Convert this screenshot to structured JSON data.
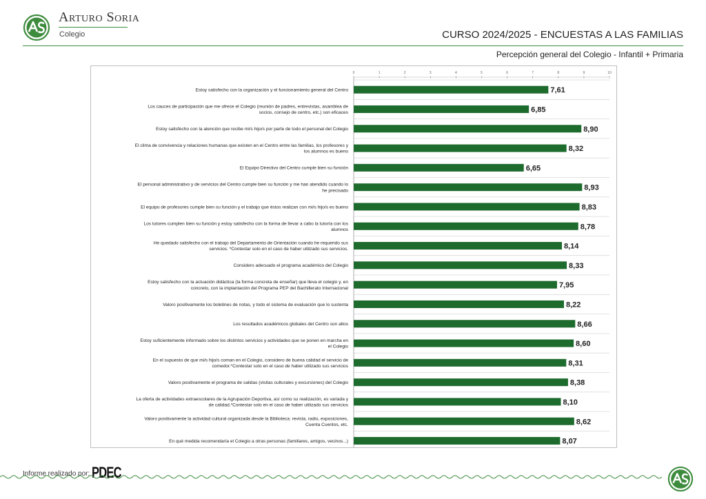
{
  "brand": {
    "name": "Arturo Soria",
    "sub": "Colegio",
    "logo_icon": "as-monogram-icon"
  },
  "header": {
    "title": "CURSO 2024/2025 - ENCUESTAS A LAS FAMILIAS",
    "subtitle": "Percepción general del Colegio - Infantil + Primaria"
  },
  "footer": {
    "prefix": "Informe realizado por:",
    "company": "PDEC"
  },
  "colors": {
    "bar": "#1e6b2e",
    "accent": "#3d8b3d",
    "grid": "#d9d9d9"
  },
  "chart_data": {
    "type": "bar",
    "orientation": "horizontal",
    "xlim": [
      0,
      10
    ],
    "xticks": [
      "0",
      "1",
      "2",
      "3",
      "4",
      "5",
      "6",
      "7",
      "8",
      "9",
      "10"
    ],
    "grid": true,
    "categories": [
      "Estoy satisfecho con la organización y el funcionamiento general del Centro",
      "Los cauces de participación que me ofrece el Colegio (reunión de padres, entrevistas, asamblea de socios, consejo de centro, etc.) son eficaces",
      "Estoy satisfecho con la atención que recibe mi/s hijo/s por parte de todo el personal del Colegio",
      "El clima de convivencia y relaciones humanas que existen en el Centro entre las familias, los profesores y los alumnos es bueno",
      "El Equipo Directivo del Centro cumple bien su función",
      "El personal administrativo y de servicios del Centro cumple bien su función y me han atendido cuando lo he precisado",
      "El equipo de profesores cumple bien su función y el trabajo que éstos realizan con mi/s hijo/s es bueno",
      "Los tutores cumplen bien su función y estoy satisfecho con la forma de llevar a cabo la tutoría con los alumnos",
      "He quedado satisfecho con el trabajo del Departamento de Orientación cuando he requerido sus servicios. *Contestar solo en el caso de haber utilizado sus servicios.",
      "Considero adecuado el programa académico del Colegio",
      "Estoy satisfecho con la actuación didáctica (la forma concreta de enseñar) que lleva el colegio y, en concreto, con la implantación del Programa PEP del Bachillerato Internacional",
      "Valoro positivamente los boletines de notas, y todo el sistema de evaluación que lo sustenta",
      "Los resultados académicos globales del Centro son altos",
      "Estoy suficientemente informado sobre los distintos servicios y actividades que se ponen en marcha en el Colegio",
      "En el supuesto de que mi/s hijo/s coman en el Colegio, considero de buena calidad el servicio de comedor.*Contestar solo en el caso de haber utilizado sus servicios",
      "Valoro positivamente el programa de salidas (visitas culturales y excursiones) del Colegio",
      "La oferta de actividades extraescolares de la Agrupación Deportiva, así como su realización, es variada y de calidad.*Contestar solo en el caso de haber utilizado sus servicios",
      "Valoro positivamente la actividad cultural organizada desde la Biblioteca: revista, radio, exposiciones, Cuenta Cuentos, etc.",
      "En qué medida recomendaría el Colegio a otras personas (familiares, amigos, vecinos...)"
    ],
    "label_lines": [
      [
        "Estoy satisfecho con la organización y el funcionamiento general del Centro"
      ],
      [
        "Los cauces de participación que me ofrece el Colegio (reunión de padres, entrevistas, asamblea de",
        "socios, consejo de centro, etc.) son eficaces"
      ],
      [
        "Estoy satisfecho con la atención que recibe mi/s hijo/s por parte de todo el personal del Colegio"
      ],
      [
        "El clima de convivencia y relaciones humanas que existen en el Centro entre las familias, los profesores y",
        "los alumnos es bueno"
      ],
      [
        "El Equipo Directivo del Centro cumple bien su función"
      ],
      [
        "El personal administrativo y de servicios del Centro cumple bien su función y me han atendido cuando lo",
        "he precisado"
      ],
      [
        "El equipo de profesores cumple bien su función y el trabajo que éstos realizan con mi/s hijo/s es bueno"
      ],
      [
        "Los tutores cumplen bien su función y estoy satisfecho con la forma de llevar a cabo la tutoría con los",
        "alumnos"
      ],
      [
        "He quedado satisfecho con el trabajo del Departamento de Orientación cuando he requerido sus",
        "servicios. *Contestar solo en el caso de haber utilizado sus servicios."
      ],
      [
        "Considero adecuado el programa académico del Colegio"
      ],
      [
        "Estoy satisfecho con la actuación didáctica (la forma concreta de enseñar) que lleva el colegio y, en",
        "concreto, con la implantación del Programa PEP del Bachillerato Internacional"
      ],
      [
        "Valoro positivamente los boletines de notas, y todo el sistema de evaluación que lo sustenta"
      ],
      [
        "Los resultados académicos globales del Centro son altos"
      ],
      [
        "Estoy suficientemente informado sobre los distintos servicios y actividades que se ponen en marcha en",
        "el Colegio"
      ],
      [
        "En el supuesto de que mi/s hijo/s coman en el Colegio, considero de buena calidad el servicio de",
        "comedor.*Contestar solo en el caso de haber utilizado sus servicios"
      ],
      [
        "Valoro positivamente el programa de salidas (visitas culturales y excursiones) del Colegio"
      ],
      [
        "La oferta de actividades extraescolares de la Agrupación Deportiva, así como su realización, es variada y",
        "de calidad.*Contestar solo en el caso de haber utilizado sus servicios"
      ],
      [
        "Valoro positivamente la actividad cultural organizada desde la Biblioteca: revista, radio, exposiciones,",
        "Cuenta Cuentos, etc."
      ],
      [
        "En qué medida recomendaría el Colegio a otras personas (familiares, amigos, vecinos...)"
      ]
    ],
    "values": [
      7.61,
      6.85,
      8.9,
      8.32,
      6.65,
      8.93,
      8.83,
      8.78,
      8.14,
      8.33,
      7.95,
      8.22,
      8.66,
      8.6,
      8.31,
      8.38,
      8.1,
      8.62,
      8.07
    ],
    "value_labels": [
      "7,61",
      "6,85",
      "8,90",
      "8,32",
      "6,65",
      "8,93",
      "8,83",
      "8,78",
      "8,14",
      "8,33",
      "7,95",
      "8,22",
      "8,66",
      "8,60",
      "8,31",
      "8,38",
      "8,10",
      "8,62",
      "8,07"
    ]
  }
}
